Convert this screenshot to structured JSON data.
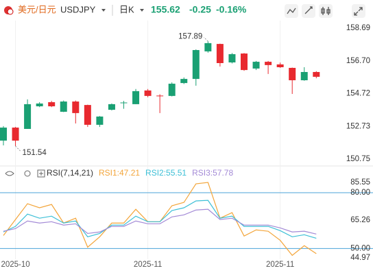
{
  "header": {
    "pair_cn": "美元/日元",
    "symbol": "USDJPY",
    "period": "日K",
    "price": "155.62",
    "change": "-0.25",
    "change_pct": "-0.16%"
  },
  "chart_data": [
    {
      "type": "candlestick",
      "categories": [
        null,
        "2025-10",
        null,
        null,
        null,
        null,
        null,
        null,
        null,
        null,
        null,
        null,
        "2025-11",
        null,
        null,
        null,
        null,
        null,
        null,
        null,
        null,
        null,
        null,
        "2025-11",
        null,
        null,
        null
      ],
      "open": [
        151.87,
        152.66,
        152.58,
        153.95,
        154.2,
        153.62,
        154.24,
        154.03,
        152.83,
        153.74,
        154.14,
        154.08,
        154.91,
        154.6,
        154.58,
        155.36,
        155.61,
        157.28,
        157.73,
        156.61,
        157.15,
        156.24,
        156.65,
        156.49,
        156.28,
        155.53,
        156.03
      ],
      "high": [
        152.75,
        152.7,
        154.37,
        154.2,
        154.28,
        154.3,
        154.3,
        154.05,
        153.36,
        154.12,
        154.28,
        155.0,
        155.0,
        154.68,
        155.4,
        155.7,
        157.4,
        157.89,
        157.75,
        157.18,
        157.18,
        156.7,
        156.7,
        156.6,
        156.3,
        156.32,
        156.08
      ],
      "low": [
        151.58,
        151.54,
        152.58,
        153.9,
        153.9,
        153.6,
        152.91,
        152.7,
        152.7,
        153.7,
        153.8,
        154.08,
        154.5,
        153.54,
        154.55,
        155.3,
        155.2,
        157.2,
        156.36,
        156.55,
        156.1,
        156.15,
        155.91,
        156.28,
        154.7,
        155.5,
        155.65
      ],
      "close": [
        152.66,
        151.87,
        154.08,
        154.12,
        153.95,
        154.24,
        153.54,
        152.83,
        153.33,
        154.08,
        154.18,
        154.87,
        154.58,
        154.56,
        155.32,
        155.61,
        157.36,
        157.78,
        156.57,
        157.11,
        156.15,
        156.65,
        156.45,
        156.32,
        155.53,
        156.03,
        155.74
      ],
      "up_color": "#1aa073",
      "down_color": "#e8292f",
      "ylim": [
        150.75,
        158.69
      ],
      "yticks": [
        158.69,
        {
          "value": 156.7,
          "label": "156.70"
        },
        154.72,
        152.73,
        150.75
      ]
    },
    {
      "type": "line",
      "title": "RSI(7,14,21)",
      "series": [
        {
          "name": "RSI1:47.21",
          "color": "#f3a53a",
          "values": [
            57.0,
            65.6,
            74.1,
            71.9,
            73.7,
            63.7,
            66.3,
            50.7,
            56.3,
            63.7,
            63.7,
            71.1,
            64.4,
            64.4,
            73.0,
            74.8,
            84.8,
            85.55,
            66.3,
            69.3,
            56.7,
            60.0,
            59.3,
            54.4,
            46.3,
            51.5,
            47.21
          ]
        },
        {
          "name": "RSI2:55.51",
          "color": "#3bbfd6",
          "values": [
            58.9,
            61.9,
            68.5,
            66.3,
            67.4,
            63.7,
            64.8,
            56.3,
            58.1,
            62.6,
            62.6,
            67.4,
            64.4,
            64.4,
            70.4,
            71.9,
            75.6,
            75.9,
            66.3,
            67.4,
            61.9,
            61.9,
            61.9,
            59.6,
            56.3,
            57.4,
            55.51
          ]
        },
        {
          "name": "RSI3:57.78",
          "color": "#a38ad6",
          "values": [
            59.3,
            60.7,
            64.8,
            63.7,
            64.4,
            62.6,
            63.3,
            58.1,
            58.9,
            61.9,
            61.9,
            64.8,
            63.3,
            63.3,
            67.0,
            68.1,
            70.7,
            71.1,
            65.6,
            66.3,
            62.6,
            62.6,
            62.6,
            61.1,
            58.9,
            59.3,
            57.78
          ]
        }
      ],
      "ylim": [
        44.97,
        85.55
      ],
      "yticks": [
        85.55,
        {
          "value": 80,
          "label": "80.00"
        },
        65.26,
        {
          "value": 50,
          "label": "50.00"
        },
        44.97
      ],
      "ref_lines": [
        80,
        50
      ],
      "ref_color": "#4aa3d8"
    }
  ]
}
